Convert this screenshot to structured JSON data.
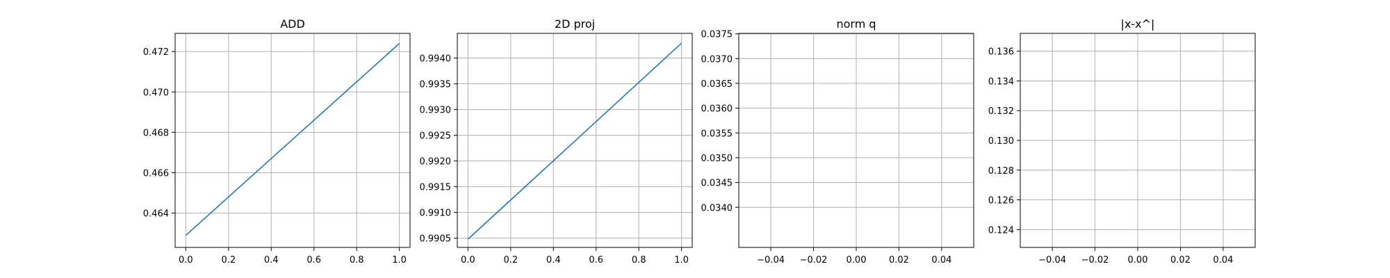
{
  "chart_data": [
    {
      "type": "line",
      "title": "ADD",
      "xlabel": "",
      "ylabel": "",
      "grid": true,
      "xlim": [
        -0.05,
        1.05
      ],
      "ylim": [
        0.4623,
        0.4729
      ],
      "xticks": [
        "0.0",
        "0.2",
        "0.4",
        "0.6",
        "0.8",
        "1.0"
      ],
      "yticks": [
        "0.464",
        "0.466",
        "0.468",
        "0.470",
        "0.472"
      ],
      "series": [
        {
          "x": [
            0,
            1
          ],
          "y": [
            0.4629,
            0.4724
          ],
          "color": "#1f77b4"
        }
      ]
    },
    {
      "type": "line",
      "title": "2D proj",
      "xlabel": "",
      "ylabel": "",
      "grid": true,
      "xlim": [
        -0.05,
        1.05
      ],
      "ylim": [
        0.99032,
        0.99448
      ],
      "xticks": [
        "0.0",
        "0.2",
        "0.4",
        "0.6",
        "0.8",
        "1.0"
      ],
      "yticks": [
        "0.9905",
        "0.9910",
        "0.9915",
        "0.9920",
        "0.9925",
        "0.9930",
        "0.9935",
        "0.9940"
      ],
      "series": [
        {
          "x": [
            0,
            1
          ],
          "y": [
            0.99048,
            0.99429
          ],
          "color": "#1f77b4"
        }
      ]
    },
    {
      "type": "line",
      "title": "norm q",
      "xlabel": "",
      "ylabel": "",
      "grid": true,
      "xlim": [
        -0.055,
        0.055
      ],
      "ylim": [
        0.03319,
        0.03751
      ],
      "xticks": [
        "−0.04",
        "−0.02",
        "0.00",
        "0.02",
        "0.04"
      ],
      "yticks": [
        "0.0340",
        "0.0345",
        "0.0350",
        "0.0355",
        "0.0360",
        "0.0365",
        "0.0370",
        "0.0375"
      ],
      "series": []
    },
    {
      "type": "line",
      "title": "|x-x^|",
      "xlabel": "",
      "ylabel": "",
      "grid": true,
      "xlim": [
        -0.055,
        0.055
      ],
      "ylim": [
        0.1228,
        0.1372
      ],
      "xticks": [
        "−0.04",
        "−0.02",
        "0.00",
        "0.02",
        "0.04"
      ],
      "yticks": [
        "0.124",
        "0.126",
        "0.128",
        "0.130",
        "0.132",
        "0.134",
        "0.136"
      ],
      "series": []
    }
  ]
}
